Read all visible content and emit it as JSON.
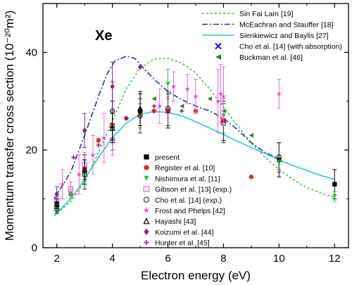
{
  "chart_data": {
    "type": "scatter",
    "panel_label": "Xe",
    "xlabel": "Electron energy (eV)",
    "ylabel": "Momentum transfer cross section (10⁻²⁰m²)",
    "xlim": [
      1.5,
      12.5
    ],
    "ylim": [
      0,
      50
    ],
    "x_ticks": [
      "2",
      "4",
      "6",
      "8",
      "10",
      "12"
    ],
    "y_ticks": [
      "0",
      "20",
      "40"
    ],
    "legend_lines_placement": "top-right",
    "legend_points_placement": "center-bottom",
    "curves": [
      {
        "name": "Sin Fai Lam [19]",
        "color": "#33cc33",
        "dash": "dotted",
        "x": [
          1.9,
          2.5,
          3.0,
          3.5,
          4.0,
          4.5,
          5.0,
          5.5,
          6.0,
          6.5,
          7.0,
          7.5,
          8.0,
          8.5,
          9.0,
          9.5,
          10.0,
          10.5,
          11.0,
          11.5,
          12.0
        ],
        "y": [
          6.5,
          9.5,
          13.5,
          19.5,
          26.0,
          32.5,
          36.8,
          38.6,
          38.8,
          37.8,
          35.8,
          32.5,
          28.8,
          25.0,
          21.5,
          18.5,
          16.0,
          14.0,
          12.3,
          11.2,
          10.3
        ]
      },
      {
        "name": "McEachran and Stauffer [18]",
        "color": "#1f2fbf",
        "dash": "dashdot",
        "x": [
          1.9,
          2.5,
          3.0,
          3.5,
          3.8,
          4.1,
          4.5,
          4.8,
          5.0,
          5.5,
          6.0,
          6.5,
          7.0,
          7.5,
          8.0,
          8.5,
          9.0,
          9.5,
          10.0
        ],
        "y": [
          10.0,
          15.5,
          23.0,
          31.0,
          35.5,
          38.3,
          39.2,
          38.8,
          37.5,
          34.5,
          32.0,
          30.3,
          29.0,
          28.0,
          26.5,
          24.2,
          21.5,
          19.5,
          18.2
        ]
      },
      {
        "name": "Sienkiewicz and Baylis [27]",
        "color": "#22ccdd",
        "dash": "solid",
        "x": [
          1.9,
          2.5,
          3.0,
          3.5,
          4.0,
          4.5,
          5.0,
          5.5,
          6.0,
          6.5,
          7.0,
          7.5,
          8.0,
          8.5,
          9.0,
          9.5,
          10.0,
          10.5,
          11.0,
          11.5,
          12.0
        ],
        "y": [
          6.5,
          10.0,
          14.0,
          18.5,
          22.5,
          25.5,
          27.3,
          27.9,
          27.7,
          27.0,
          25.8,
          24.5,
          23.2,
          21.8,
          20.5,
          19.3,
          18.0,
          16.8,
          15.8,
          14.8,
          14.0
        ]
      }
    ],
    "point_series": [
      {
        "name": "Cho et al. [14] (with absorption)",
        "marker": "x",
        "color": "#1a1aff",
        "x": [],
        "y": [],
        "err": []
      },
      {
        "name": "Buckman et al. [46]",
        "marker": "triangle-left",
        "color": "#1e8c1e",
        "x": [
          5.5,
          6.5,
          7.5,
          8.0,
          9.0,
          10.0
        ],
        "y": [
          30.5,
          29.0,
          30.5,
          28.0,
          23.0,
          18.0
        ],
        "err": [
          0,
          0,
          0,
          0,
          0,
          0
        ]
      },
      {
        "name": "present",
        "marker": "square",
        "color": "#000000",
        "x": [
          2.0,
          3.0,
          4.0,
          5.0,
          6.0,
          8.0,
          10.0,
          12.0
        ],
        "y": [
          9.0,
          16.0,
          25.0,
          28.0,
          28.0,
          26.0,
          18.0,
          13.0
        ],
        "err": [
          1.5,
          3.0,
          5.0,
          3.5,
          3.5,
          4.0,
          3.5,
          3.0
        ]
      },
      {
        "name": "Register et al. [10]",
        "marker": "circle",
        "color": "#ee2222",
        "x": [
          2.0,
          2.5,
          3.0,
          3.5,
          4.0,
          4.5,
          5.0,
          5.5,
          6.0,
          7.0,
          8.0,
          9.0
        ],
        "y": [
          8.5,
          11.0,
          16.0,
          22.0,
          25.0,
          26.5,
          27.2,
          28.0,
          28.2,
          28.0,
          26.0,
          14.5
        ],
        "err": [
          0,
          0,
          0,
          0,
          0,
          0,
          0,
          0,
          0,
          0,
          0,
          0
        ]
      },
      {
        "name": "Nishimura et al. [11]",
        "marker": "triangle-down",
        "color": "#22cc22",
        "x": [
          2.0,
          2.5,
          3.0,
          4.0,
          5.0,
          6.0,
          8.0,
          10.0,
          12.0
        ],
        "y": [
          8.0,
          11.0,
          15.0,
          22.0,
          27.0,
          33.5,
          27.0,
          17.5,
          10.5
        ],
        "err": [
          0.8,
          1.0,
          1.5,
          2.0,
          2.5,
          3.0,
          3.5,
          1.5,
          1.0
        ]
      },
      {
        "name": "Gibson et al. [13] (exp.)",
        "marker": "square-open",
        "color": "#ee55ee",
        "x": [
          2.0,
          2.5,
          3.0,
          4.0,
          6.0
        ],
        "y": [
          9.5,
          12.0,
          17.0,
          22.0,
          28.0
        ],
        "err": [
          1.0,
          1.5,
          2.5,
          3.0,
          3.0
        ]
      },
      {
        "name": "Cho et al. [14] (exp.)",
        "marker": "circle-open",
        "color": "#333333",
        "x": [
          2.0,
          3.0,
          4.0,
          5.0,
          6.0,
          8.0,
          10.0
        ],
        "y": [
          8.0,
          15.0,
          28.0,
          27.0,
          28.5,
          25.5,
          18.5
        ],
        "err": [
          1.0,
          3.0,
          6.0,
          3.5,
          3.5,
          4.0,
          3.0
        ]
      },
      {
        "name": "Frost and Phelps [42]",
        "marker": "star",
        "color": "#ee44cc",
        "x": [
          2.2,
          2.8,
          3.3,
          3.7,
          5.7,
          6.2,
          6.7,
          7.0,
          7.8,
          7.9,
          8.0,
          10.0
        ],
        "y": [
          13.0,
          15.0,
          19.0,
          22.5,
          29.0,
          33.0,
          32.5,
          31.0,
          30.0,
          31.5,
          31.0,
          31.5
        ],
        "err": [
          3.0,
          4.0,
          4.0,
          5.0,
          3.5,
          3.0,
          3.0,
          3.5,
          6.5,
          6.0,
          6.0,
          3.0
        ]
      },
      {
        "name": "Hayashi [43]",
        "marker": "triangle-open",
        "color": "#000000",
        "x": [
          2.0,
          3.0,
          4.0,
          5.0
        ],
        "y": [
          9.0,
          16.0,
          24.5,
          28.5
        ],
        "err": [
          1.0,
          2.0,
          3.0,
          3.5
        ]
      },
      {
        "name": "Koizumi et al. [44]",
        "marker": "diamond",
        "color": "#882288",
        "x": [
          2.0,
          3.0,
          4.0,
          5.0
        ],
        "y": [
          11.0,
          24.0,
          33.0,
          37.0
        ],
        "err": [
          1.5,
          3.5,
          5.0,
          0
        ]
      },
      {
        "name": "Hunter et al. [45]",
        "marker": "plus",
        "color": "#882288",
        "x": [
          2.6,
          3.5,
          4.5,
          5.5,
          6.5
        ],
        "y": [
          18.5,
          21.0,
          26.5,
          29.0,
          28.0
        ],
        "err": [
          0,
          0,
          0,
          0,
          0
        ]
      }
    ],
    "legend_lines": [
      {
        "label": "Sin Fai Lam [19]",
        "color": "#33cc33",
        "dash": "dotted"
      },
      {
        "label": "McEachran and Stauffer [18]",
        "color": "#1f2fbf",
        "dash": "dashdot"
      },
      {
        "label": "Sienkiewicz and Baylis [27]",
        "color": "#22ccdd",
        "dash": "solid"
      },
      {
        "label": "Cho et al. [14] (with absorption)",
        "marker": "x",
        "color": "#1a1aff"
      },
      {
        "label": "Buckman et al. [46]",
        "marker": "triangle-left",
        "color": "#1e8c1e"
      }
    ],
    "legend_points": [
      {
        "label": "present",
        "marker": "square",
        "color": "#000000"
      },
      {
        "label": "Register et al. [10]",
        "marker": "circle",
        "color": "#ee2222"
      },
      {
        "label": "Nishimura et al. [11]",
        "marker": "triangle-down",
        "color": "#22cc22"
      },
      {
        "label": "Gibson et al. [13] (exp.)",
        "marker": "square-open",
        "color": "#ee55ee"
      },
      {
        "label": "Cho et al. [14] (exp.)",
        "marker": "circle-open",
        "color": "#333333"
      },
      {
        "label": "Frost and Phelps [42]",
        "marker": "star",
        "color": "#ee44cc"
      },
      {
        "label": "Hayashi [43]",
        "marker": "triangle-open",
        "color": "#000000"
      },
      {
        "label": "Koizumi et al. [44]",
        "marker": "diamond",
        "color": "#882288"
      },
      {
        "label": "Hunter et al. [45]",
        "marker": "plus",
        "color": "#882288"
      }
    ]
  }
}
